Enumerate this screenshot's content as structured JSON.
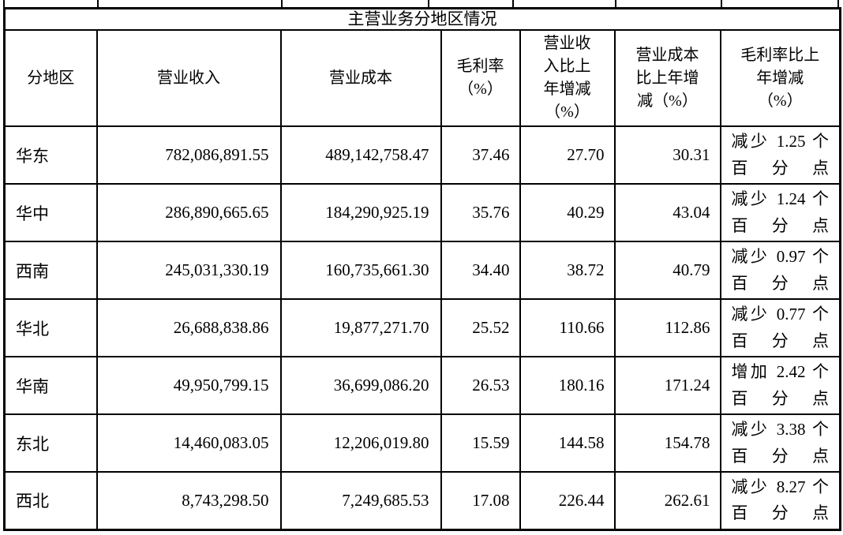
{
  "table": {
    "title": "主营业务分地区情况",
    "columns": [
      "分地区",
      "营业收入",
      "营业成本",
      "毛利率\n（%）",
      "营业收\n入比上\n年增减\n（%）",
      "营业成本\n比上年增\n减（%）",
      "毛利率比上\n年增减\n（%）"
    ],
    "column_keys": [
      "region",
      "revenue",
      "cost",
      "gross_margin",
      "revenue_yoy",
      "cost_yoy",
      "margin_yoy"
    ],
    "rows": [
      {
        "region": "华东",
        "revenue": "782,086,891.55",
        "cost": "489,142,758.47",
        "gross_margin": "37.46",
        "revenue_yoy": "27.70",
        "cost_yoy": "30.31",
        "margin_yoy": "减少 1.25 个百分点"
      },
      {
        "region": "华中",
        "revenue": "286,890,665.65",
        "cost": "184,290,925.19",
        "gross_margin": "35.76",
        "revenue_yoy": "40.29",
        "cost_yoy": "43.04",
        "margin_yoy": "减少 1.24 个百分点"
      },
      {
        "region": "西南",
        "revenue": "245,031,330.19",
        "cost": "160,735,661.30",
        "gross_margin": "34.40",
        "revenue_yoy": "38.72",
        "cost_yoy": "40.79",
        "margin_yoy": "减少 0.97 个百分点"
      },
      {
        "region": "华北",
        "revenue": "26,688,838.86",
        "cost": "19,877,271.70",
        "gross_margin": "25.52",
        "revenue_yoy": "110.66",
        "cost_yoy": "112.86",
        "margin_yoy": "减少 0.77 个百分点"
      },
      {
        "region": "华南",
        "revenue": "49,950,799.15",
        "cost": "36,699,086.20",
        "gross_margin": "26.53",
        "revenue_yoy": "180.16",
        "cost_yoy": "171.24",
        "margin_yoy": "增加 2.42 个百分点"
      },
      {
        "region": "东北",
        "revenue": "14,460,083.05",
        "cost": "12,206,019.80",
        "gross_margin": "15.59",
        "revenue_yoy": "144.58",
        "cost_yoy": "154.78",
        "margin_yoy": "减少 3.38 个百分点"
      },
      {
        "region": "西北",
        "revenue": "8,743,298.50",
        "cost": "7,249,685.53",
        "gross_margin": "17.08",
        "revenue_yoy": "226.44",
        "cost_yoy": "262.61",
        "margin_yoy": "减少 8.27 个百分点"
      }
    ]
  }
}
